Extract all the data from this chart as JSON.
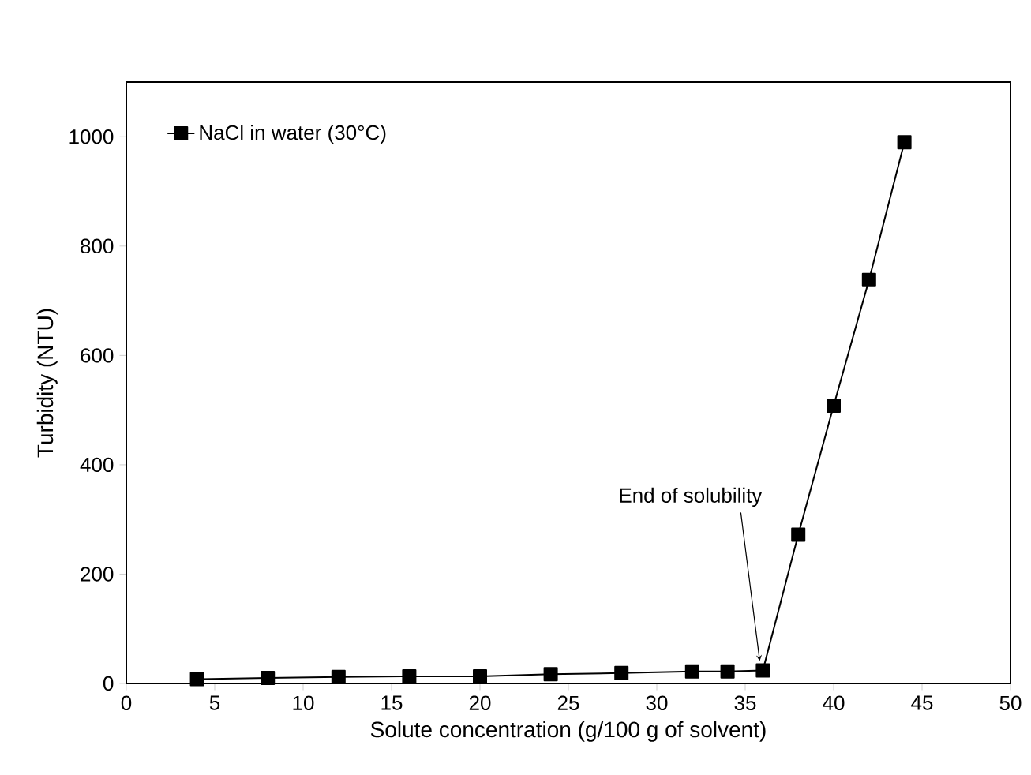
{
  "chart_data": {
    "type": "line",
    "xlabel": "Solute concentration (g/100 g of solvent)",
    "ylabel": "Turbidity (NTU)",
    "x": [
      4,
      8,
      12,
      16,
      20,
      24,
      28,
      32,
      34,
      36,
      38,
      40,
      42,
      44
    ],
    "series": [
      {
        "name": "NaCl in water (30°C)",
        "color": "#000000",
        "values": [
          8,
          10,
          12,
          13,
          13,
          17,
          19,
          22,
          22,
          24,
          272,
          508,
          738,
          990
        ]
      }
    ],
    "xlim": [
      0,
      50
    ],
    "ylim": [
      0,
      1100
    ],
    "xticks": [
      0,
      5,
      10,
      15,
      20,
      25,
      30,
      35,
      40,
      45,
      50
    ],
    "yticks": [
      0,
      200,
      400,
      600,
      800,
      1000
    ],
    "annotations": [
      {
        "text": "End of solubility",
        "x": 36,
        "y": 24
      }
    ],
    "legend": "top left",
    "marker": "square",
    "line_style": "solid",
    "grid": false
  }
}
